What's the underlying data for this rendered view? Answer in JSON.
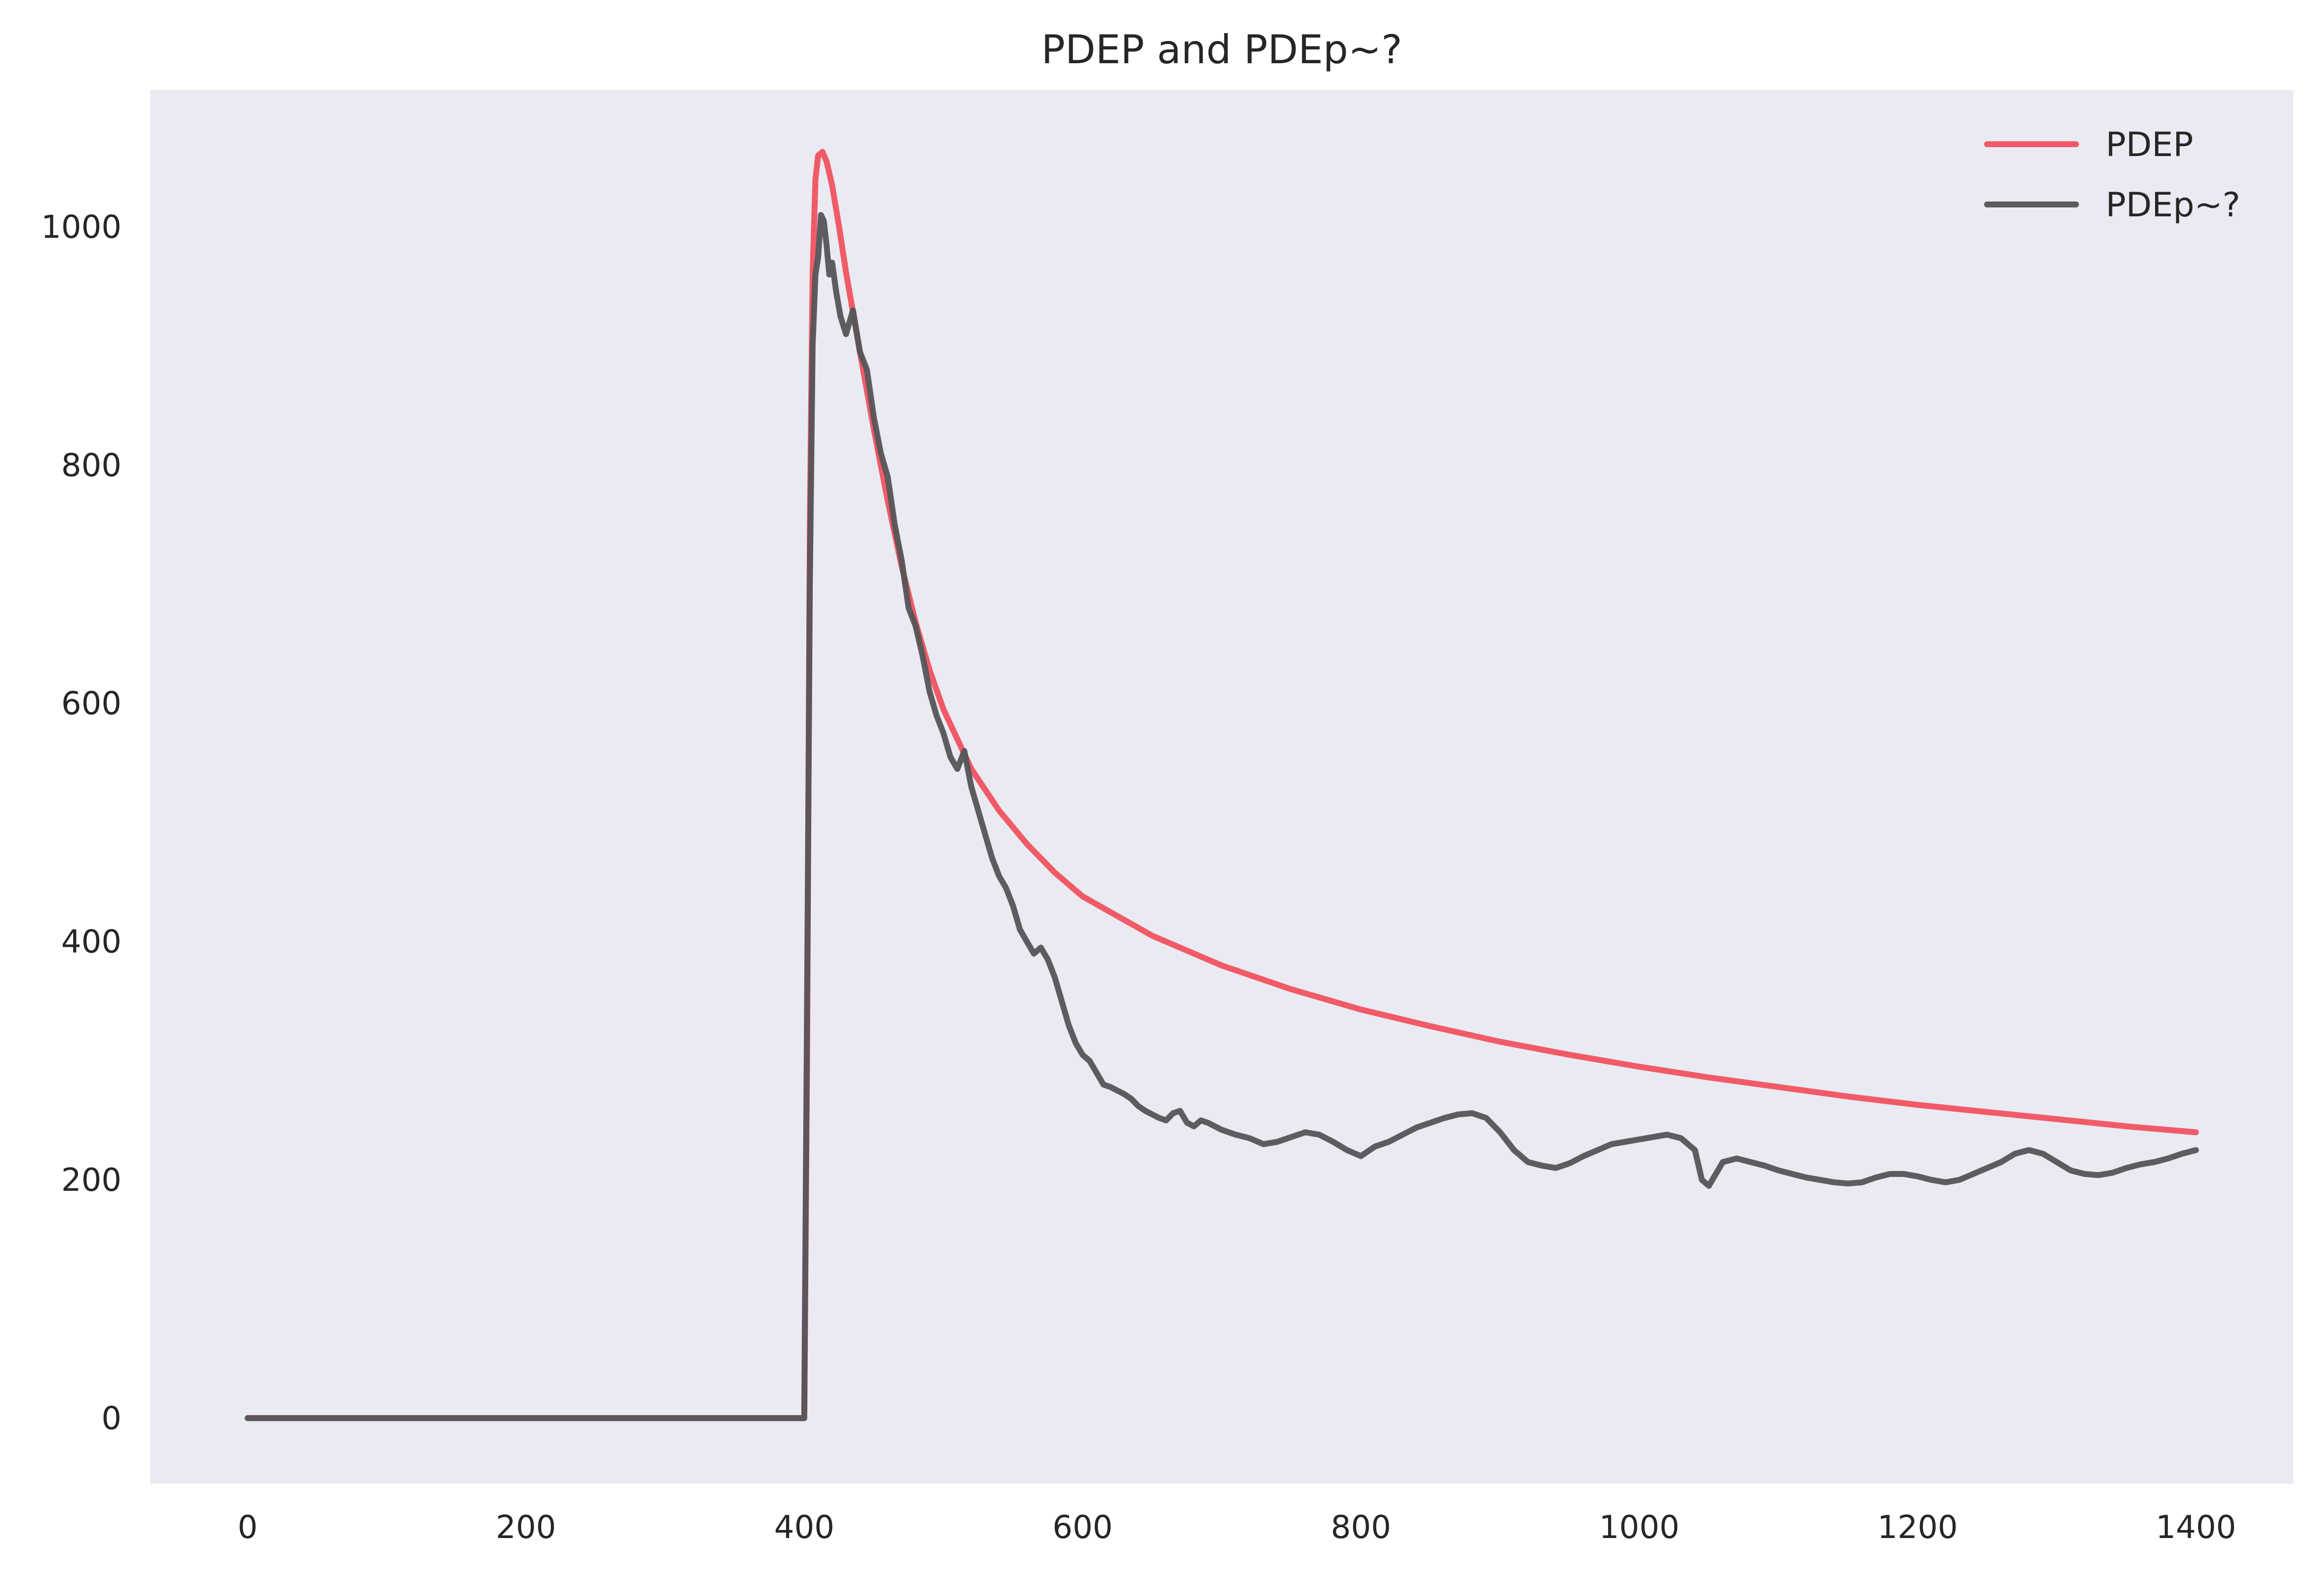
{
  "chart_data": {
    "type": "line",
    "title": "PDEP and PDEp~?",
    "xlabel": "",
    "ylabel": "",
    "xlim": [
      -70,
      1470
    ],
    "ylim": [
      -55,
      1115
    ],
    "xticks": [
      0,
      200,
      400,
      600,
      800,
      1000,
      1200,
      1400
    ],
    "yticks": [
      0,
      200,
      400,
      600,
      800,
      1000
    ],
    "xtick_labels": [
      "0",
      "200",
      "400",
      "600",
      "800",
      "1000",
      "1200",
      "1400"
    ],
    "ytick_labels": [
      "0",
      "200",
      "400",
      "600",
      "800",
      "1000"
    ],
    "grid": false,
    "background": "#eaeaf2",
    "legend_position": "top-right",
    "series": [
      {
        "name": "PDEP",
        "color": "#f0535f",
        "x": [
          0,
          400,
          402,
          404,
          406,
          408,
          410,
          413,
          416,
          420,
          425,
          430,
          440,
          450,
          460,
          470,
          480,
          490,
          500,
          520,
          540,
          560,
          580,
          600,
          650,
          700,
          750,
          800,
          850,
          900,
          950,
          1000,
          1050,
          1100,
          1150,
          1200,
          1250,
          1300,
          1350,
          1400
        ],
        "y": [
          0,
          0,
          300,
          750,
          960,
          1040,
          1060,
          1063,
          1055,
          1035,
          1000,
          962,
          895,
          830,
          770,
          715,
          668,
          628,
          595,
          545,
          510,
          482,
          458,
          438,
          405,
          380,
          360,
          343,
          329,
          316,
          305,
          295,
          286,
          278,
          270,
          263,
          257,
          251,
          245,
          240
        ]
      },
      {
        "name": "PDEp~?",
        "color": "#555558",
        "x": [
          0,
          400,
          402,
          404,
          406,
          408,
          410,
          412,
          414,
          416,
          418,
          420,
          423,
          426,
          430,
          435,
          440,
          445,
          450,
          455,
          460,
          465,
          470,
          475,
          480,
          485,
          490,
          495,
          500,
          505,
          510,
          515,
          520,
          525,
          530,
          535,
          540,
          545,
          550,
          555,
          560,
          565,
          570,
          575,
          580,
          585,
          590,
          595,
          600,
          605,
          610,
          615,
          620,
          625,
          630,
          635,
          640,
          645,
          650,
          655,
          660,
          665,
          670,
          675,
          680,
          685,
          690,
          695,
          700,
          710,
          720,
          730,
          740,
          750,
          760,
          770,
          780,
          790,
          800,
          810,
          820,
          830,
          840,
          850,
          860,
          870,
          880,
          890,
          900,
          910,
          920,
          930,
          940,
          950,
          960,
          970,
          980,
          990,
          1000,
          1010,
          1020,
          1030,
          1040,
          1045,
          1050,
          1055,
          1060,
          1070,
          1080,
          1090,
          1100,
          1110,
          1120,
          1130,
          1140,
          1150,
          1160,
          1170,
          1180,
          1190,
          1200,
          1210,
          1220,
          1230,
          1240,
          1250,
          1260,
          1270,
          1280,
          1290,
          1300,
          1310,
          1320,
          1330,
          1340,
          1350,
          1360,
          1370,
          1380,
          1390,
          1400
        ],
        "y": [
          0,
          0,
          350,
          700,
          900,
          960,
          975,
          1010,
          1005,
          985,
          960,
          970,
          945,
          925,
          910,
          930,
          895,
          880,
          840,
          810,
          790,
          750,
          720,
          680,
          665,
          640,
          610,
          590,
          575,
          555,
          545,
          560,
          530,
          510,
          490,
          470,
          455,
          445,
          430,
          410,
          400,
          390,
          395,
          385,
          370,
          350,
          330,
          315,
          305,
          300,
          290,
          280,
          278,
          275,
          272,
          268,
          262,
          258,
          255,
          252,
          250,
          256,
          258,
          248,
          245,
          250,
          248,
          245,
          242,
          238,
          235,
          230,
          232,
          236,
          240,
          238,
          232,
          225,
          220,
          228,
          232,
          238,
          244,
          248,
          252,
          255,
          256,
          252,
          240,
          225,
          215,
          212,
          210,
          214,
          220,
          225,
          230,
          232,
          234,
          236,
          238,
          235,
          225,
          200,
          195,
          205,
          215,
          218,
          215,
          212,
          208,
          205,
          202,
          200,
          198,
          197,
          198,
          202,
          205,
          205,
          203,
          200,
          198,
          200,
          205,
          210,
          215,
          222,
          225,
          222,
          215,
          208,
          205,
          204,
          206,
          210,
          213,
          215,
          218,
          222,
          225
        ]
      }
    ]
  }
}
